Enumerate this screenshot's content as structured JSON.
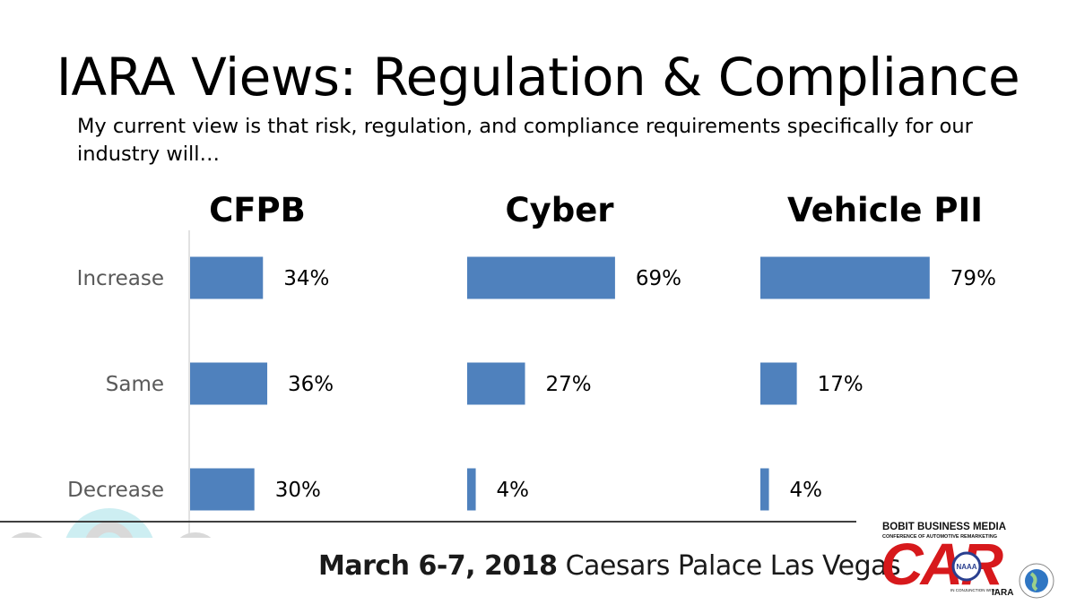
{
  "slide": {
    "title": "IARA Views: Regulation & Compliance",
    "subtitle": "My current view is that risk, regulation, and compliance requirements specifically for our industry will…"
  },
  "chart_data": [
    {
      "type": "bar",
      "orientation": "horizontal",
      "title": "CFPB",
      "categories": [
        "Increase",
        "Same",
        "Decrease"
      ],
      "values": [
        34,
        36,
        30
      ],
      "value_labels": [
        "34%",
        "36%",
        "30%"
      ],
      "unit": "%",
      "color": "#4f81bd"
    },
    {
      "type": "bar",
      "orientation": "horizontal",
      "title": "Cyber",
      "categories": [
        "Increase",
        "Same",
        "Decrease"
      ],
      "values": [
        69,
        27,
        4
      ],
      "value_labels": [
        "69%",
        "27%",
        "4%"
      ],
      "unit": "%",
      "color": "#4f81bd"
    },
    {
      "type": "bar",
      "orientation": "horizontal",
      "title": "Vehicle PII",
      "categories": [
        "Increase",
        "Same",
        "Decrease"
      ],
      "values": [
        79,
        17,
        4
      ],
      "value_labels": [
        "79%",
        "17%",
        "4%"
      ],
      "unit": "%",
      "color": "#4f81bd"
    }
  ],
  "footer": {
    "date": "March 6-7, 2018",
    "venue": "Caesars Palace Las Vegas"
  },
  "logo": {
    "publisher": "BOBIT BUSINESS MEDIA",
    "tagline": "CONFERENCE OF AUTOMOTIVE REMARKETING",
    "name": "CAR",
    "partner_note": "IN CONJUNCTION WITH",
    "partner": "IARA",
    "seal": "NAAA"
  },
  "colors": {
    "bar": "#4f81bd",
    "axis": "#d9d9d9",
    "category_text": "#595959",
    "people_icons": "#d9d9d9",
    "people_fill": "#cdeef2",
    "logo_red": "#d7191c"
  },
  "icons": [
    "people-group-icon",
    "naaa-seal-icon",
    "globe-icon"
  ]
}
